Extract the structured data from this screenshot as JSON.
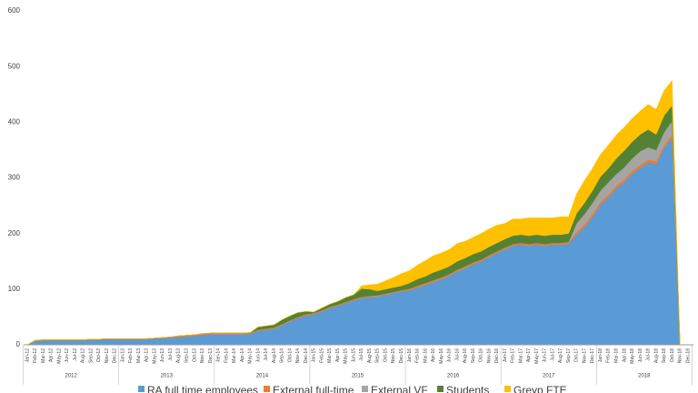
{
  "chart_data": {
    "type": "stacked_area",
    "categories": [
      "Jan-12",
      "Feb-12",
      "Mar-12",
      "Apr-12",
      "May-12",
      "Jun-12",
      "Jul-12",
      "Aug-12",
      "Sep-12",
      "Oct-12",
      "Nov-12",
      "Dec-12",
      "Jan-13",
      "Feb-13",
      "Mar-13",
      "Apr-13",
      "May-13",
      "Jun-13",
      "Jul-13",
      "Aug-13",
      "Sep-13",
      "Oct-13",
      "Nov-13",
      "Dec-13",
      "Jan-14",
      "Feb-14",
      "Mar-14",
      "Apr-14",
      "May-14",
      "Jun-14",
      "Jul-14",
      "Aug-14",
      "Sep-14",
      "Oct-14",
      "Nov-14",
      "Dec-14",
      "Jan-15",
      "Feb-15",
      "Mar-15",
      "Apr-15",
      "May-15",
      "Jun-15",
      "Jul-15",
      "Aug-15",
      "Sep-15",
      "Oct-15",
      "Nov-15",
      "Dec-15",
      "Jan-16",
      "Feb-16",
      "Mar-16",
      "Apr-16",
      "May-16",
      "Jun-16",
      "Jul-16",
      "Aug-16",
      "Sep-16",
      "Oct-16",
      "Nov-16",
      "Dec-16",
      "Jan-17",
      "Feb-17",
      "Mar-17",
      "Apr-17",
      "May-17",
      "Jun-17",
      "Jul-17",
      "Aug-17",
      "Sep-17",
      "Oct-17",
      "Nov-17",
      "Dec-17",
      "Jan-18",
      "Feb-18",
      "Mar-18",
      "Apr-18",
      "May-18",
      "Jun-18",
      "Jul-18",
      "Aug-18",
      "Sep-18",
      "Oct-18",
      "Nov-18",
      "Dec-18"
    ],
    "year_groups": [
      "2012",
      "2013",
      "2014",
      "2015",
      "2016",
      "2017",
      "2018"
    ],
    "series": [
      {
        "name": "RA full time employees",
        "color": "#5b9bd5",
        "values": [
          0,
          7,
          8,
          8,
          8,
          8,
          8,
          8,
          9,
          9,
          10,
          10,
          10,
          10,
          10,
          10,
          11,
          12,
          13,
          14,
          15,
          16,
          18,
          19,
          19,
          19,
          19,
          19,
          20,
          25,
          27,
          29,
          35,
          42,
          48,
          53,
          55,
          60,
          66,
          70,
          75,
          80,
          84,
          86,
          87,
          90,
          93,
          96,
          98,
          103,
          108,
          113,
          118,
          124,
          132,
          138,
          145,
          150,
          158,
          165,
          172,
          178,
          180,
          178,
          180,
          178,
          180,
          180,
          182,
          198,
          212,
          230,
          252,
          265,
          282,
          292,
          308,
          318,
          328,
          325,
          355,
          372,
          0,
          0
        ]
      },
      {
        "name": "External full-time",
        "color": "#ed7d31",
        "values": [
          0,
          1,
          1,
          1,
          1,
          1,
          1,
          1,
          1,
          1,
          1,
          1,
          1,
          1,
          1,
          1,
          1,
          1,
          1,
          2,
          2,
          2,
          2,
          2,
          2,
          2,
          2,
          2,
          2,
          2,
          2,
          2,
          2,
          2,
          2,
          2,
          2,
          2,
          2,
          2,
          2,
          2,
          2,
          2,
          2,
          2,
          2,
          2,
          3,
          3,
          3,
          3,
          3,
          3,
          3,
          3,
          3,
          3,
          3,
          3,
          3,
          3,
          3,
          3,
          3,
          3,
          3,
          3,
          3,
          5,
          5,
          5,
          5,
          5,
          5,
          5,
          5,
          5,
          5,
          5,
          5,
          5,
          0,
          0
        ]
      },
      {
        "name": "External VF",
        "color": "#a5a5a5",
        "values": [
          0,
          0,
          0,
          0,
          0,
          0,
          0,
          0,
          0,
          0,
          0,
          0,
          0,
          0,
          0,
          0,
          0,
          0,
          0,
          0,
          0,
          0,
          0,
          0,
          0,
          0,
          0,
          0,
          0,
          0,
          0,
          0,
          0,
          0,
          0,
          0,
          0,
          0,
          0,
          0,
          0,
          0,
          0,
          0,
          0,
          0,
          0,
          0,
          0,
          0,
          0,
          0,
          0,
          0,
          0,
          0,
          0,
          0,
          0,
          0,
          0,
          0,
          0,
          0,
          0,
          0,
          0,
          0,
          0,
          15,
          18,
          20,
          20,
          22,
          20,
          22,
          22,
          25,
          22,
          20,
          22,
          25,
          0,
          0
        ]
      },
      {
        "name": "Students",
        "color": "#548235",
        "values": [
          0,
          0,
          0,
          0,
          0,
          0,
          0,
          0,
          0,
          0,
          0,
          0,
          0,
          0,
          0,
          0,
          0,
          0,
          0,
          0,
          0,
          0,
          0,
          0,
          0,
          0,
          0,
          0,
          0,
          5,
          5,
          5,
          8,
          8,
          8,
          5,
          2,
          4,
          5,
          6,
          8,
          8,
          15,
          12,
          8,
          8,
          8,
          8,
          10,
          12,
          12,
          14,
          14,
          14,
          15,
          15,
          15,
          15,
          15,
          15,
          15,
          15,
          15,
          15,
          15,
          15,
          15,
          15,
          15,
          18,
          20,
          22,
          25,
          25,
          28,
          30,
          30,
          30,
          32,
          28,
          30,
          28,
          0,
          0
        ]
      },
      {
        "name": "Greyp FTE",
        "color": "#ffc000",
        "values": [
          0,
          0,
          0,
          0,
          0,
          0,
          0,
          0,
          0,
          0,
          0,
          0,
          0,
          0,
          0,
          0,
          0,
          0,
          0,
          0,
          0,
          0,
          0,
          0,
          0,
          0,
          0,
          0,
          0,
          0,
          0,
          0,
          0,
          0,
          0,
          0,
          0,
          0,
          0,
          0,
          0,
          0,
          5,
          8,
          12,
          15,
          18,
          22,
          22,
          25,
          28,
          30,
          30,
          30,
          32,
          30,
          30,
          32,
          32,
          32,
          28,
          30,
          28,
          32,
          30,
          32,
          30,
          32,
          30,
          35,
          40,
          40,
          40,
          42,
          42,
          42,
          42,
          42,
          45,
          45,
          45,
          45,
          0,
          0
        ]
      }
    ],
    "ylim": [
      0,
      600
    ],
    "yticks": [
      0,
      100,
      200,
      300,
      400,
      500,
      600
    ],
    "grid": false
  }
}
